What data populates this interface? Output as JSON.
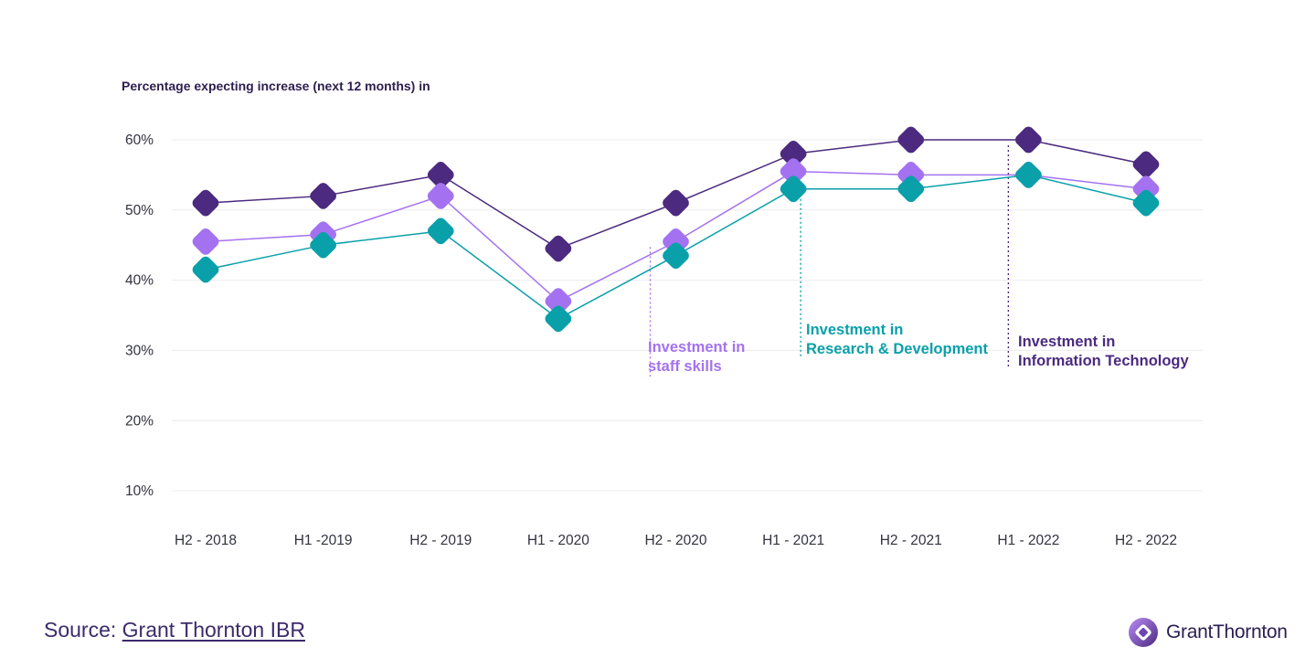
{
  "chart_data": {
    "type": "line",
    "title": "",
    "subtitle": "Percentage expecting increase (next 12 months) in",
    "categories": [
      "H2 - 2018",
      "H1 -2019",
      "H2 - 2019",
      "H1 - 2020",
      "H2 - 2020",
      "H1 - 2021",
      "H2 - 2021",
      "H1 - 2022",
      "H2 - 2022"
    ],
    "y_ticks": [
      "10%",
      "20%",
      "30%",
      "40%",
      "50%",
      "60%"
    ],
    "ylim": [
      10,
      60
    ],
    "grid": true,
    "series": [
      {
        "name": "Investment in Information Technology",
        "color": "#4b2a7f",
        "values": [
          51,
          52,
          55,
          44.5,
          51,
          58,
          60,
          60,
          56.5
        ]
      },
      {
        "name": "Investment in staff skills",
        "color": "#a472f0",
        "values": [
          45.5,
          46.5,
          52,
          37,
          45.5,
          55.5,
          55,
          55,
          53
        ]
      },
      {
        "name": "Investment in Research & Development",
        "color": "#0aa0aa",
        "values": [
          41.5,
          45,
          47,
          34.5,
          43.5,
          53,
          53,
          55,
          51
        ]
      }
    ],
    "annotations": [
      {
        "lines": [
          "Investment in",
          "staff skills"
        ],
        "color": "#a472f0",
        "category": "H2 - 2020",
        "series": "Investment in staff skills"
      },
      {
        "lines": [
          "Investment in",
          "Research & Development"
        ],
        "color": "#0aa0aa",
        "category": "H1 - 2021",
        "series": "Investment in Research & Development"
      },
      {
        "lines": [
          "Investment in",
          "Information Technology"
        ],
        "color": "#4b2a7f",
        "category": "H1 - 2022",
        "series": "Investment in Information Technology"
      }
    ]
  },
  "footer": {
    "source_prefix": "Source:",
    "source_link": "Grant Thornton IBR",
    "logo_text": "GrantThornton"
  }
}
